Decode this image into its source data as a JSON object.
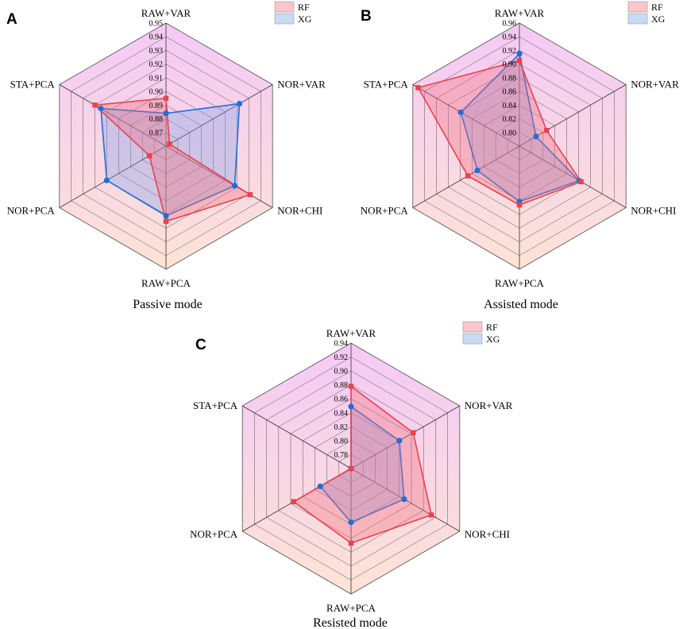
{
  "chart_data": [
    {
      "type": "radar",
      "panel": "A",
      "title": "Passive mode",
      "axes": [
        "RAW+VAR",
        "NOR+VAR",
        "NOR+CHI",
        "RAW+PCA",
        "NOR+PCA",
        "STA+PCA"
      ],
      "rlim": [
        0.86,
        0.95
      ],
      "ticks": [
        0.87,
        0.88,
        0.89,
        0.9,
        0.91,
        0.92,
        0.93,
        0.94,
        0.95
      ],
      "tick_labels": [
        "0.87",
        "0.88",
        "0.89",
        "0.90",
        "0.91",
        "0.92",
        "0.93",
        "0.94",
        "0.95"
      ],
      "legend": [
        "RF",
        "XG"
      ],
      "series": [
        {
          "name": "RF",
          "values": [
            0.895,
            0.863,
            0.931,
            0.915,
            0.874,
            0.92
          ]
        },
        {
          "name": "XG",
          "values": [
            0.884,
            0.922,
            0.918,
            0.911,
            0.91,
            0.915
          ]
        }
      ]
    },
    {
      "type": "radar",
      "panel": "B",
      "title": "Assisted mode",
      "axes": [
        "RAW+VAR",
        "NOR+VAR",
        "NOR+CHI",
        "RAW+PCA",
        "NOR+PCA",
        "STA+PCA"
      ],
      "rlim": [
        0.78,
        0.96
      ],
      "ticks": [
        0.8,
        0.82,
        0.84,
        0.86,
        0.88,
        0.9,
        0.92,
        0.94,
        0.96
      ],
      "tick_labels": [
        "0.80",
        "0.82",
        "0.84",
        "0.86",
        "0.88",
        "0.90",
        "0.92",
        "0.94",
        "0.96"
      ],
      "legend": [
        "RF",
        "XG"
      ],
      "series": [
        {
          "name": "RF",
          "values": [
            0.905,
            0.826,
            0.884,
            0.866,
            0.867,
            0.951
          ]
        },
        {
          "name": "XG",
          "values": [
            0.915,
            0.808,
            0.881,
            0.861,
            0.851,
            0.879
          ]
        }
      ]
    },
    {
      "type": "radar",
      "panel": "C",
      "title": "Resisted mode",
      "axes": [
        "RAW+VAR",
        "NOR+VAR",
        "NOR+CHI",
        "RAW+PCA",
        "NOR+PCA",
        "STA+PCA"
      ],
      "rlim": [
        0.76,
        0.94
      ],
      "ticks": [
        0.78,
        0.8,
        0.82,
        0.84,
        0.86,
        0.88,
        0.9,
        0.92,
        0.94
      ],
      "tick_labels": [
        "0.78",
        "0.80",
        "0.82",
        "0.84",
        "0.86",
        "0.88",
        "0.90",
        "0.92",
        "0.94"
      ],
      "legend": [
        "RF",
        "XG"
      ],
      "series": [
        {
          "name": "RF",
          "values": [
            0.878,
            0.863,
            0.893,
            0.867,
            0.855,
            0.76
          ]
        },
        {
          "name": "XG",
          "values": [
            0.849,
            0.84,
            0.848,
            0.837,
            0.811,
            0.76
          ]
        }
      ]
    }
  ],
  "colors": {
    "rf_line": "#e8414f",
    "rf_fill": "#f36a77",
    "xg_line": "#1f6fd8",
    "xg_fill": "#7fa0e8",
    "bg_top": "#f4c9f6",
    "bg_bottom": "#fde3d6",
    "grid": "#555555",
    "legend_rf": "#fbc5cb",
    "legend_xg": "#c6dcf5"
  }
}
